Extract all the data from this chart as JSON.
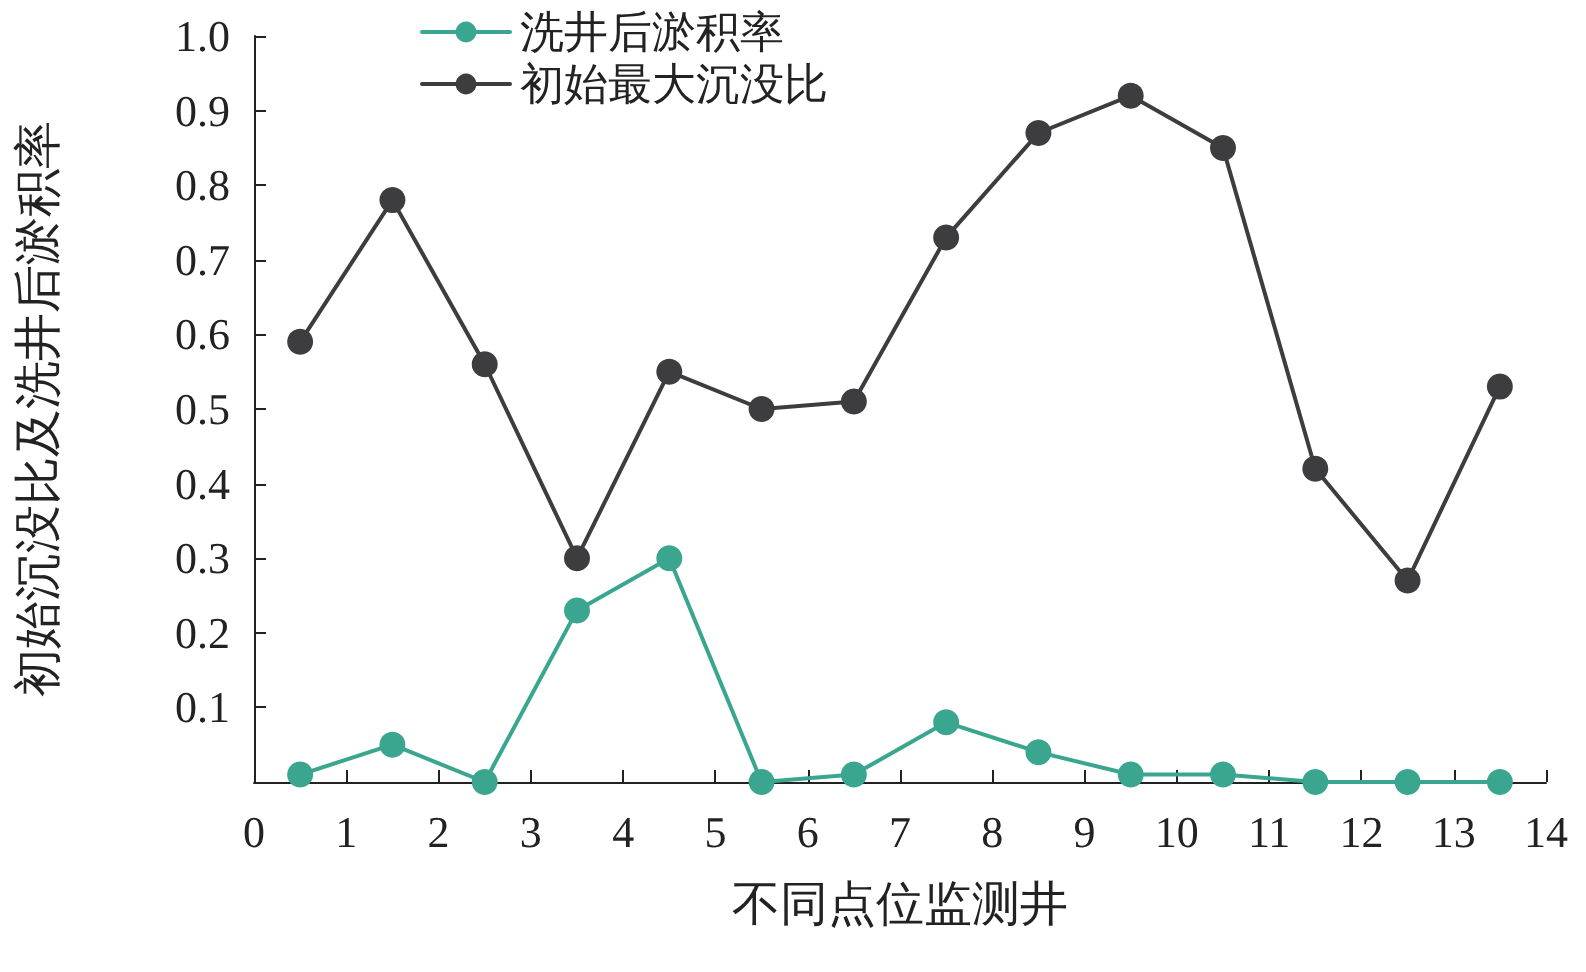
{
  "chart_data": {
    "type": "line",
    "xlabel": "不同点位监测井",
    "ylabel": "初始沉没比及洗井后淤积率",
    "x": [
      0.5,
      1.5,
      2.5,
      3.5,
      4.5,
      5.5,
      6.5,
      7.5,
      8.5,
      9.5,
      10.5,
      11.5,
      12.5,
      13.5
    ],
    "series": [
      {
        "name": "洗井后淤积率",
        "color": "#3aa68f",
        "values": [
          0.01,
          0.05,
          0.0,
          0.23,
          0.3,
          0.0,
          0.01,
          0.08,
          0.04,
          0.01,
          0.01,
          0.0,
          0.0,
          0.0
        ]
      },
      {
        "name": "初始最大沉没比",
        "color": "#3d3d3f",
        "values": [
          0.59,
          0.78,
          0.56,
          0.3,
          0.55,
          0.5,
          0.51,
          0.73,
          0.87,
          0.92,
          0.85,
          0.42,
          0.27,
          0.53
        ]
      }
    ],
    "xlim": [
      0,
      14
    ],
    "xticks": [
      0,
      1,
      2,
      3,
      4,
      5,
      6,
      7,
      8,
      9,
      10,
      11,
      12,
      13,
      14
    ],
    "ylim": [
      0,
      1
    ],
    "yticks": [
      {
        "value": 0,
        "label": null
      },
      0.1,
      0.2,
      0.3,
      0.4,
      0.5,
      0.6,
      0.7,
      0.8,
      0.9,
      {
        "value": 1,
        "label": "1.0"
      }
    ],
    "grid": false,
    "legend": "top left",
    "marker": "circle",
    "line_style": "solid"
  }
}
